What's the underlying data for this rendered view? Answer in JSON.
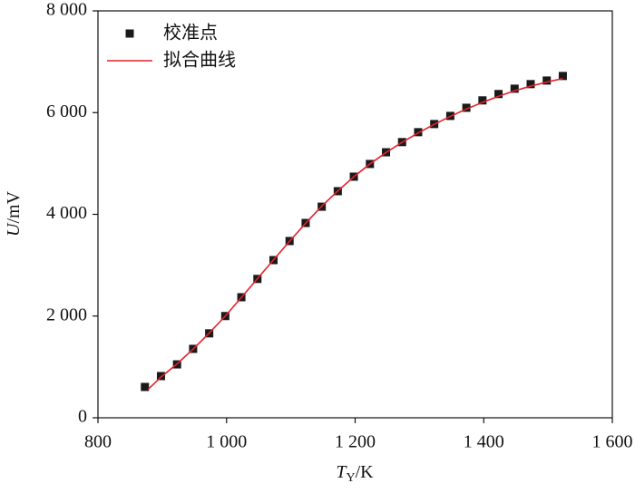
{
  "chart_data": {
    "type": "scatter",
    "x_label": {
      "symbol": "T",
      "subscript": "Y",
      "unit": "/K"
    },
    "y_label": {
      "symbol": "U",
      "unit": "/mV"
    },
    "xlim": [
      800,
      1600
    ],
    "xticks": [
      800,
      {
        "value": 1000,
        "label": "1 000"
      },
      {
        "value": 1200,
        "label": "1 200"
      },
      {
        "value": 1400,
        "label": "1 400"
      },
      {
        "value": 1600,
        "label": "1 600"
      }
    ],
    "ylim": [
      0,
      8000
    ],
    "yticks": [
      0,
      {
        "value": 2000,
        "label": "2 000"
      },
      {
        "value": 4000,
        "label": "4 000"
      },
      {
        "value": 6000,
        "label": "6 000"
      },
      {
        "value": 8000,
        "label": "8 000"
      }
    ],
    "legend": "top-left",
    "series": [
      {
        "name": "校准点",
        "type": "scatter",
        "color": "#1a1a1a",
        "x": [
          873,
          898,
          923,
          948,
          973,
          998,
          1023,
          1048,
          1073,
          1098,
          1123,
          1148,
          1173,
          1198,
          1223,
          1248,
          1273,
          1298,
          1323,
          1348,
          1373,
          1398,
          1423,
          1448,
          1473,
          1498,
          1523
        ],
        "values": [
          606,
          820,
          1050,
          1355,
          1660,
          2000,
          2370,
          2730,
          3100,
          3475,
          3830,
          4150,
          4455,
          4740,
          4990,
          5220,
          5420,
          5615,
          5775,
          5935,
          6095,
          6240,
          6365,
          6470,
          6560,
          6630,
          6720
        ]
      },
      {
        "name": "拟合曲线",
        "type": "line",
        "color": "#e4202a",
        "x": [
          878,
          898,
          923,
          948,
          973,
          998,
          1023,
          1048,
          1073,
          1098,
          1123,
          1148,
          1173,
          1198,
          1223,
          1248,
          1273,
          1298,
          1323,
          1348,
          1373,
          1398,
          1423,
          1448,
          1473,
          1498,
          1523
        ],
        "values": [
          560,
          800,
          1060,
          1350,
          1665,
          2000,
          2365,
          2735,
          3105,
          3470,
          3825,
          4160,
          4460,
          4740,
          4990,
          5215,
          5415,
          5600,
          5770,
          5925,
          6070,
          6200,
          6320,
          6430,
          6520,
          6600,
          6670
        ]
      }
    ]
  }
}
